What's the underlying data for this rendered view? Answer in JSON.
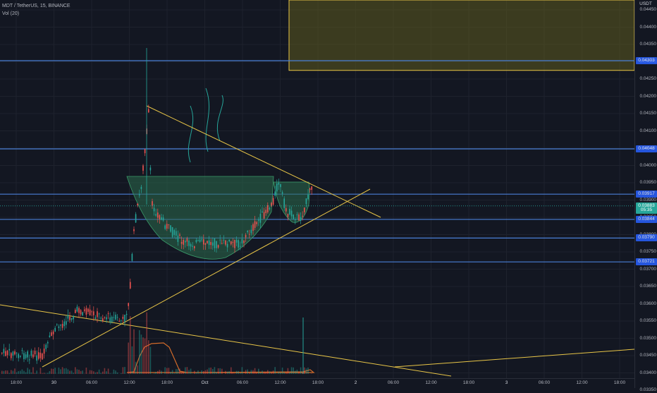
{
  "legend": {
    "symbol": "MDT / TetherUS, 15, BINANCE",
    "volume": "Vol (20)"
  },
  "price_axis": {
    "currency": "USDT",
    "ticks": [
      "0.04450",
      "0.04400",
      "0.04350",
      "0.04300",
      "0.04250",
      "0.04200",
      "0.04150",
      "0.04100",
      "0.04050",
      "0.04000",
      "0.03950",
      "0.03900",
      "0.03850",
      "0.03800",
      "0.03750",
      "0.03700",
      "0.03650",
      "0.03600",
      "0.03550",
      "0.03500",
      "0.03450",
      "0.03400",
      "0.03350"
    ],
    "badges": [
      {
        "text": "0.04303",
        "kind": "blue",
        "price": 0.04303
      },
      {
        "text": "0.04048",
        "kind": "blue",
        "price": 0.04048
      },
      {
        "text": "0.03917",
        "kind": "blue",
        "price": 0.03917
      },
      {
        "text": "0.03883",
        "kind": "green",
        "price": 0.03883
      },
      {
        "text": "05:35",
        "kind": "green",
        "price": 0.0387
      },
      {
        "text": "0.03844",
        "kind": "blue",
        "price": 0.03844
      },
      {
        "text": "0.03790",
        "kind": "blue",
        "price": 0.0379
      },
      {
        "text": "0.03721",
        "kind": "blue",
        "price": 0.03721
      }
    ]
  },
  "time_axis": {
    "labels": [
      {
        "text": "18:00",
        "day": false
      },
      {
        "text": "30",
        "day": true
      },
      {
        "text": "06:00",
        "day": false
      },
      {
        "text": "12:00",
        "day": false
      },
      {
        "text": "18:00",
        "day": false
      },
      {
        "text": "Oct",
        "day": true
      },
      {
        "text": "06:00",
        "day": false
      },
      {
        "text": "12:00",
        "day": false
      },
      {
        "text": "18:00",
        "day": false
      },
      {
        "text": "2",
        "day": true
      },
      {
        "text": "06:00",
        "day": false
      },
      {
        "text": "12:00",
        "day": false
      },
      {
        "text": "18:00",
        "day": false
      },
      {
        "text": "3",
        "day": true
      },
      {
        "text": "06:00",
        "day": false
      },
      {
        "text": "12:00",
        "day": false
      },
      {
        "text": "18:00",
        "day": false
      }
    ]
  },
  "colors": {
    "up": "#26a69a",
    "down": "#ef5350",
    "hline": "#4a7fd6",
    "trend": "#e8c547",
    "zone_fill": "#5c5a1e",
    "cup_fill": "#2c6b4c",
    "volume_area": "#d26b2a"
  },
  "drawings": {
    "horizontal_lines": [
      0.04303,
      0.04048,
      0.03917,
      0.03844,
      0.0379,
      0.03721
    ],
    "resistance_box": {
      "price_top": 0.0446,
      "price_bottom": 0.04275,
      "time_start": 0.456
    },
    "current_price": 0.03883
  }
}
